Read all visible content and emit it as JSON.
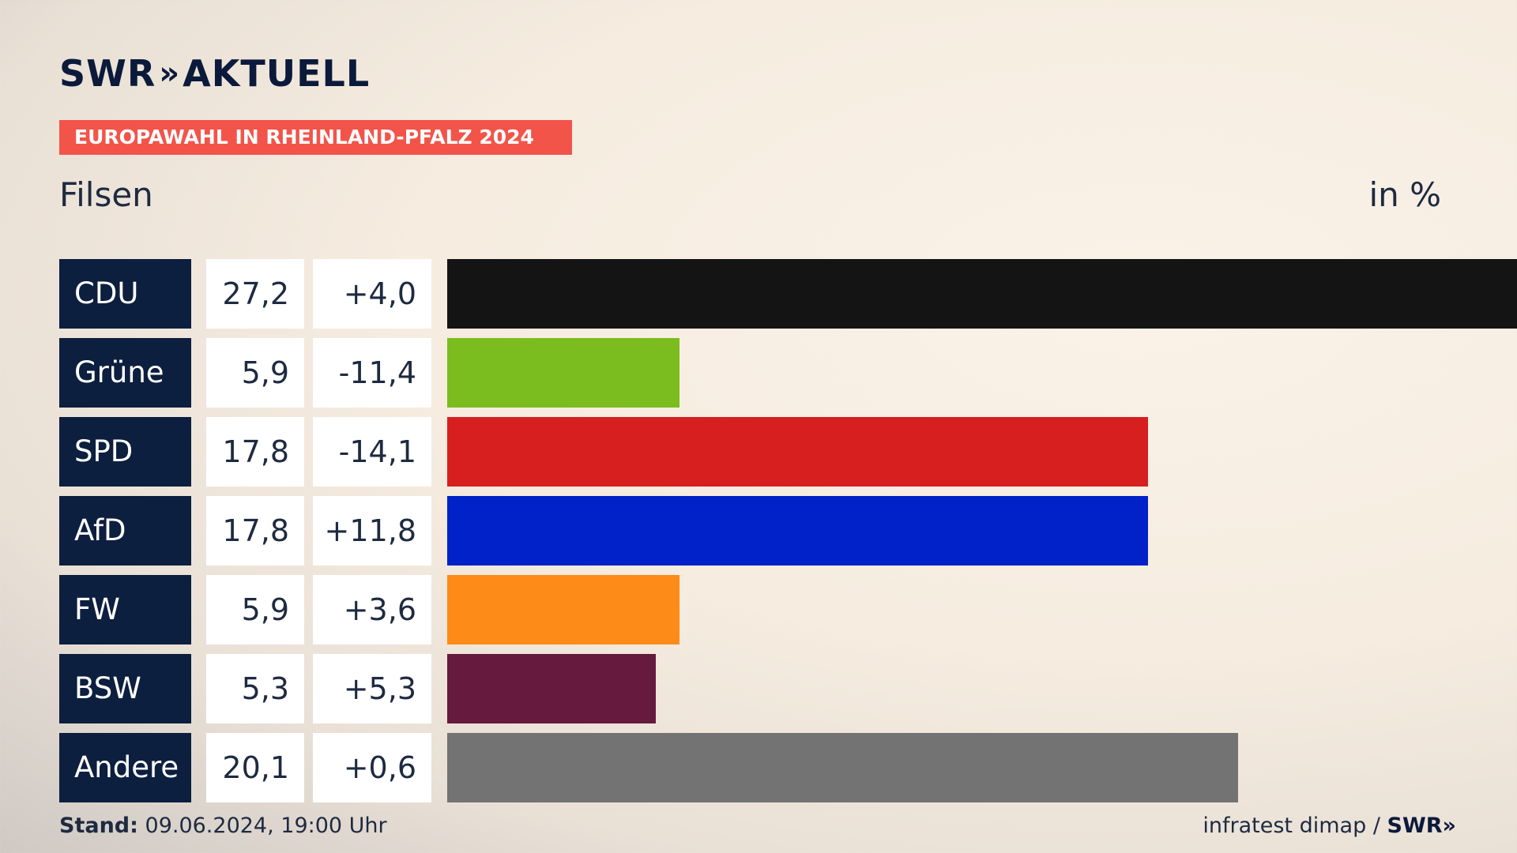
{
  "header": {
    "logo_text": "SWR",
    "logo_chevrons": "»",
    "logo_suffix": "AKTUELL",
    "banner": "EUROPAWAHL IN RHEINLAND-PFALZ 2024",
    "region": "Filsen",
    "unit": "in %"
  },
  "chart_data": {
    "type": "bar",
    "orientation": "horizontal",
    "categories": [
      "CDU",
      "Grüne",
      "SPD",
      "AfD",
      "FW",
      "BSW",
      "Andere"
    ],
    "values": [
      27.2,
      5.9,
      17.8,
      17.8,
      5.9,
      5.3,
      20.1
    ],
    "value_labels": [
      "27,2",
      "5,9",
      "17,8",
      "17,8",
      "5,9",
      "5,3",
      "20,1"
    ],
    "diff_labels": [
      "+4,0",
      "-11,4",
      "-14,1",
      "+11,8",
      "+3,6",
      "+5,3",
      "+0,6"
    ],
    "colors": [
      "#141414",
      "#7bbd1e",
      "#d71f1f",
      "#0022c8",
      "#fd8b17",
      "#651a3e",
      "#737374"
    ],
    "xlim": [
      0,
      27.2
    ],
    "unit": "in %"
  },
  "footer": {
    "stand_label": "Stand:",
    "stand_value": "09.06.2024, 19:00 Uhr",
    "source": "infratest dimap /",
    "logo_text": "SWR",
    "logo_chevrons": "»"
  }
}
